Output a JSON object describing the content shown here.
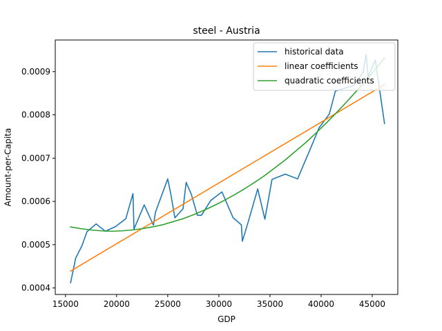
{
  "chart_data": {
    "type": "line",
    "title": "steel - Austria",
    "xlabel": "GDP",
    "ylabel": "Amount-per-Capita",
    "xlim": [
      14000,
      47500
    ],
    "ylim": [
      0.000385,
      0.000973
    ],
    "xticks": [
      15000,
      20000,
      25000,
      30000,
      35000,
      40000,
      45000
    ],
    "xtick_labels": [
      "15000",
      "20000",
      "25000",
      "30000",
      "35000",
      "40000",
      "45000"
    ],
    "yticks": [
      0.0004,
      0.0005,
      0.0006,
      0.0007,
      0.0008,
      0.0009
    ],
    "ytick_labels": [
      "0.0004",
      "0.0005",
      "0.0006",
      "0.0007",
      "0.0008",
      "0.0009"
    ],
    "grid": false,
    "legend_position": "top-right",
    "series": [
      {
        "name": "historical data",
        "color": "#1f77b4",
        "x": [
          15500,
          16000,
          16600,
          17100,
          18000,
          18900,
          19900,
          20900,
          21600,
          21700,
          22700,
          23600,
          23800,
          25000,
          25300,
          25700,
          26500,
          26800,
          27300,
          27900,
          28300,
          29200,
          30300,
          31400,
          32200,
          32300,
          32900,
          33800,
          34500,
          35200,
          36500,
          37700,
          39100,
          39800,
          40800,
          41400,
          43200,
          44100,
          44400,
          44600,
          45300,
          46200
        ],
        "y": [
          0.000412,
          0.000469,
          0.000497,
          0.00053,
          0.000548,
          0.000531,
          0.000542,
          0.00056,
          0.000618,
          0.000536,
          0.000592,
          0.000545,
          0.000575,
          0.000652,
          0.000617,
          0.000562,
          0.000583,
          0.000644,
          0.000617,
          0.000568,
          0.000568,
          0.000602,
          0.000622,
          0.000562,
          0.000546,
          0.000508,
          0.000555,
          0.000629,
          0.000559,
          0.000651,
          0.000663,
          0.000652,
          0.00073,
          0.00077,
          0.000802,
          0.000855,
          0.000868,
          0.000898,
          0.00094,
          0.000888,
          0.000927,
          0.00078
        ]
      },
      {
        "name": "linear coefficients",
        "color": "#ff7f0e",
        "x": [
          15500,
          46200
        ],
        "y": [
          0.000439,
          0.00087
        ]
      },
      {
        "name": "quadratic coefficients",
        "color": "#2ca02c",
        "x": [
          15500,
          16500,
          17500,
          18500,
          19500,
          20500,
          21500,
          22500,
          23500,
          24500,
          25500,
          26500,
          27500,
          28500,
          29500,
          30500,
          31500,
          32500,
          33500,
          34500,
          35500,
          36500,
          37500,
          38500,
          39500,
          40500,
          41500,
          42500,
          43500,
          44500,
          45500,
          46200
        ],
        "y": [
          0.000541,
          0.000537,
          0.000534,
          0.000532,
          0.000531,
          0.000532,
          0.000534,
          0.000537,
          0.000541,
          0.000546,
          0.000553,
          0.00056,
          0.000569,
          0.000579,
          0.00059,
          0.000602,
          0.000615,
          0.000629,
          0.000644,
          0.00066,
          0.000678,
          0.000696,
          0.000716,
          0.000736,
          0.000758,
          0.000781,
          0.000805,
          0.00083,
          0.000856,
          0.000883,
          0.000911,
          0.000931
        ]
      }
    ]
  }
}
